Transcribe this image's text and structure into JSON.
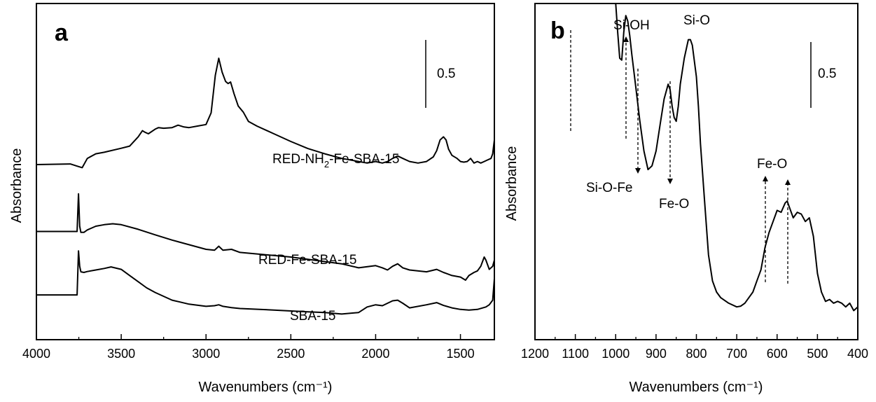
{
  "chart_data": [
    {
      "panel": "a",
      "type": "line",
      "xlabel": "Wavenumbers (cm⁻¹)",
      "ylabel": "Absorbance",
      "xlim": [
        4000,
        1300
      ],
      "x_reversed": true,
      "xticks": [
        4000,
        3500,
        3000,
        2500,
        2000,
        1500
      ],
      "yticks_shown": false,
      "grid": false,
      "ylim": [
        0,
        1.0
      ],
      "scale_bar": {
        "label": "0.5",
        "value": 0.5
      },
      "series": [
        {
          "name": "SBA-15",
          "x": [
            4000,
            3760,
            3752,
            3745,
            3738,
            3720,
            3700,
            3650,
            3600,
            3560,
            3500,
            3450,
            3400,
            3350,
            3300,
            3200,
            3100,
            3000,
            2950,
            2925,
            2900,
            2850,
            2800,
            2600,
            2400,
            2300,
            2200,
            2100,
            2050,
            2000,
            1960,
            1930,
            1900,
            1870,
            1840,
            1800,
            1700,
            1640,
            1600,
            1550,
            1500,
            1450,
            1400,
            1350,
            1330,
            1310,
            1300
          ],
          "y": [
            0.077,
            0.077,
            0.22,
            0.17,
            0.152,
            0.15,
            0.153,
            0.158,
            0.163,
            0.168,
            0.16,
            0.14,
            0.12,
            0.1,
            0.085,
            0.06,
            0.047,
            0.04,
            0.042,
            0.045,
            0.04,
            0.036,
            0.033,
            0.028,
            0.022,
            0.02,
            0.015,
            0.02,
            0.038,
            0.045,
            0.042,
            0.05,
            0.058,
            0.06,
            0.05,
            0.035,
            0.045,
            0.052,
            0.043,
            0.035,
            0.03,
            0.028,
            0.03,
            0.038,
            0.045,
            0.06,
            0.13
          ]
        },
        {
          "name": "RED-Fe-SBA-15",
          "x": [
            4000,
            3760,
            3752,
            3745,
            3738,
            3720,
            3700,
            3650,
            3600,
            3550,
            3500,
            3400,
            3300,
            3200,
            3000,
            2950,
            2925,
            2900,
            2850,
            2800,
            2500,
            2200,
            2100,
            2000,
            1960,
            1930,
            1900,
            1870,
            1840,
            1800,
            1700,
            1640,
            1600,
            1550,
            1500,
            1470,
            1450,
            1420,
            1400,
            1380,
            1360,
            1350,
            1330,
            1310,
            1300
          ],
          "y": [
            0.283,
            0.283,
            0.405,
            0.3,
            0.28,
            0.28,
            0.288,
            0.3,
            0.305,
            0.308,
            0.305,
            0.29,
            0.272,
            0.255,
            0.225,
            0.222,
            0.235,
            0.222,
            0.225,
            0.215,
            0.2,
            0.178,
            0.165,
            0.172,
            0.165,
            0.158,
            0.17,
            0.178,
            0.165,
            0.158,
            0.152,
            0.16,
            0.15,
            0.14,
            0.135,
            0.125,
            0.14,
            0.15,
            0.155,
            0.17,
            0.2,
            0.19,
            0.16,
            0.17,
            0.19
          ]
        },
        {
          "name": "RED-NH₂-Fe-SBA-15",
          "x": [
            4000,
            3800,
            3760,
            3730,
            3700,
            3650,
            3600,
            3500,
            3450,
            3400,
            3375,
            3360,
            3340,
            3300,
            3280,
            3250,
            3200,
            3165,
            3130,
            3100,
            3050,
            3000,
            2970,
            2945,
            2925,
            2905,
            2885,
            2870,
            2855,
            2835,
            2810,
            2780,
            2750,
            2700,
            2600,
            2500,
            2400,
            2300,
            2200,
            2100,
            2050,
            2000,
            1960,
            1930,
            1900,
            1870,
            1840,
            1800,
            1750,
            1700,
            1660,
            1640,
            1620,
            1600,
            1585,
            1570,
            1550,
            1520,
            1500,
            1480,
            1460,
            1440,
            1420,
            1400,
            1380,
            1360,
            1340,
            1320,
            1310,
            1300
          ],
          "y": [
            0.5,
            0.502,
            0.495,
            0.49,
            0.52,
            0.535,
            0.54,
            0.553,
            0.56,
            0.59,
            0.61,
            0.605,
            0.6,
            0.615,
            0.62,
            0.618,
            0.62,
            0.628,
            0.622,
            0.62,
            0.625,
            0.63,
            0.668,
            0.79,
            0.845,
            0.8,
            0.77,
            0.763,
            0.768,
            0.73,
            0.69,
            0.67,
            0.64,
            0.625,
            0.6,
            0.575,
            0.552,
            0.535,
            0.52,
            0.51,
            0.505,
            0.51,
            0.505,
            0.51,
            0.52,
            0.528,
            0.52,
            0.51,
            0.505,
            0.51,
            0.525,
            0.545,
            0.58,
            0.59,
            0.58,
            0.55,
            0.53,
            0.52,
            0.51,
            0.508,
            0.51,
            0.52,
            0.505,
            0.51,
            0.505,
            0.51,
            0.515,
            0.52,
            0.535,
            0.58
          ]
        }
      ],
      "annotations": [
        {
          "text": "RED-NH",
          "sub": "2",
          "rest": "-Fe-SBA-15"
        },
        {
          "text": "RED-Fe-SBA-15"
        },
        {
          "text": "SBA-15"
        }
      ]
    },
    {
      "panel": "b",
      "type": "line",
      "xlabel": "Wavenumbers (cm⁻¹)",
      "ylabel": "Absorbance",
      "xlim": [
        1200,
        400
      ],
      "x_reversed": true,
      "xticks": [
        1200,
        1100,
        1000,
        900,
        800,
        700,
        600,
        500,
        400
      ],
      "yticks_shown": false,
      "grid": false,
      "ylim": [
        0,
        1.0
      ],
      "scale_bar": {
        "label": "0.5",
        "value": 0.5
      },
      "series": [
        {
          "name": "",
          "x": [
            1005,
            1000,
            995,
            990,
            985,
            980,
            975,
            970,
            965,
            960,
            950,
            940,
            930,
            920,
            910,
            900,
            890,
            880,
            870,
            865,
            860,
            855,
            850,
            845,
            840,
            830,
            820,
            815,
            810,
            800,
            795,
            790,
            780,
            770,
            760,
            750,
            740,
            720,
            700,
            690,
            680,
            660,
            650,
            640,
            630,
            620,
            610,
            600,
            590,
            580,
            575,
            570,
            560,
            550,
            540,
            530,
            520,
            510,
            500,
            490,
            480,
            470,
            460,
            450,
            440,
            430,
            420,
            410,
            400
          ],
          "y": [
            1.0,
            0.92,
            0.8,
            0.73,
            0.725,
            0.8,
            0.845,
            0.83,
            0.79,
            0.74,
            0.65,
            0.56,
            0.48,
            0.43,
            0.44,
            0.48,
            0.55,
            0.62,
            0.66,
            0.645,
            0.6,
            0.57,
            0.56,
            0.6,
            0.66,
            0.73,
            0.78,
            0.78,
            0.765,
            0.68,
            0.6,
            0.5,
            0.35,
            0.2,
            0.13,
            0.1,
            0.085,
            0.07,
            0.06,
            0.062,
            0.07,
            0.1,
            0.13,
            0.16,
            0.22,
            0.26,
            0.29,
            0.32,
            0.315,
            0.34,
            0.345,
            0.33,
            0.3,
            0.315,
            0.31,
            0.29,
            0.3,
            0.25,
            0.15,
            0.1,
            0.075,
            0.08,
            0.07,
            0.075,
            0.07,
            0.06,
            0.07,
            0.05,
            0.06
          ]
        }
      ],
      "annotations": [
        {
          "text": "Si-OH"
        },
        {
          "text": "Si-O"
        },
        {
          "text": "Si-O-Fe"
        },
        {
          "text": "Fe-O"
        },
        {
          "text": "Fe-O"
        }
      ]
    }
  ]
}
